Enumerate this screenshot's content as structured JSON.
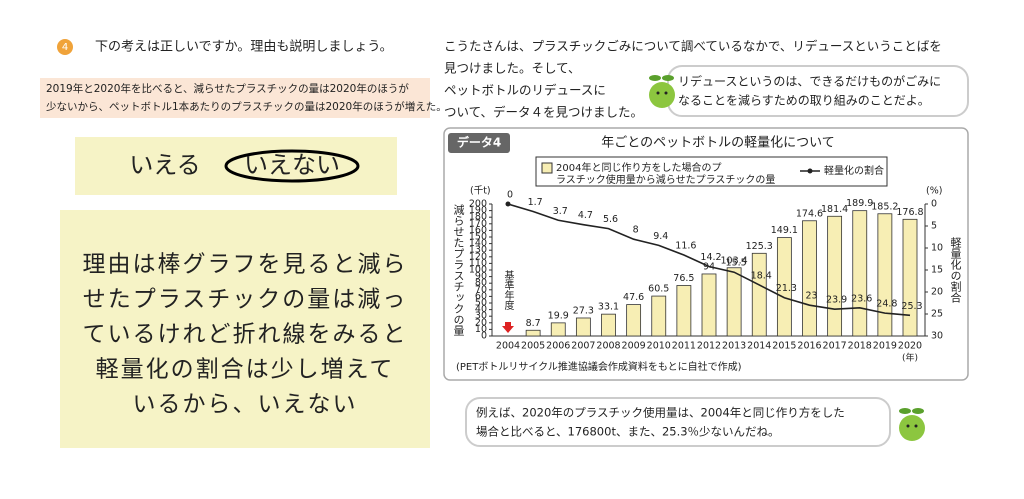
{
  "question": {
    "number": "4",
    "text": "下の考えは正しいですか。理由も説明しましょう。"
  },
  "statement": {
    "lines": [
      "2019年と2020年を比べると、減らせたプラスチックの量は2020年のほうが",
      "少ないから、ペットボトル1本あたりのプラスチックの量は2020年のほうが増えた。"
    ]
  },
  "answer": {
    "options": [
      "いえる",
      "いえない"
    ]
  },
  "reason": {
    "lines": [
      "理由は棒グラフを見ると減ら",
      "せたプラスチックの量は減っ",
      "ているけれど折れ線をみると",
      "軽量化の割合は少し増えて",
      "いるから、いえない"
    ]
  },
  "intro": {
    "lines": [
      "こうたさんは、プラスチックごみについて調べているなかで、リデュースということばを",
      "見つけました。そして、",
      "ペットボトルのリデュースに",
      "ついて、データ４を見つけました。"
    ]
  },
  "bubble": {
    "lines": [
      "リデュースというのは、できるだけものがごみに",
      "なることを減らすための取り組みのことだよ。"
    ]
  },
  "chart": {
    "type": "bar-line",
    "tag": "データ4",
    "title": "年ごとのペットボトルの軽量化について",
    "categories": [
      "2004",
      "2005",
      "2006",
      "2007",
      "2008",
      "2009",
      "2010",
      "2011",
      "2012",
      "2013",
      "2014",
      "2015",
      "2016",
      "2017",
      "2018",
      "2019",
      "2020"
    ],
    "series": [
      {
        "name": "2004年と同じ作り方をした場合のプラスチック使用量から減らせたプラスチックの量",
        "type": "bar",
        "color": "#f7eeb4",
        "values": [
          null,
          8.7,
          19.9,
          27.3,
          33.1,
          47.6,
          60.5,
          76.5,
          94,
          103.4,
          125.3,
          149.1,
          174.6,
          181.4,
          189.9,
          185.2,
          176.8
        ]
      },
      {
        "name": "軽量化の割合",
        "type": "line",
        "axis": "y2",
        "color": "#222222",
        "values": [
          0,
          1.7,
          3.7,
          4.7,
          5.6,
          8,
          9.4,
          11.6,
          14.2,
          15.5,
          18.4,
          21.3,
          23,
          23.9,
          23.6,
          24.8,
          25.3
        ]
      }
    ],
    "ylim": [
      0,
      200
    ],
    "yticks": [
      0,
      10,
      20,
      30,
      40,
      50,
      60,
      70,
      80,
      90,
      100,
      110,
      120,
      130,
      140,
      150,
      160,
      170,
      180,
      190,
      200
    ],
    "y2lim": [
      0,
      30
    ],
    "y2ticks": [
      0,
      5,
      10,
      15,
      20,
      25,
      30
    ],
    "y2_reversed": true,
    "y_unit": "(千t)",
    "y2_unit": "(%)",
    "x_unit": "(年)",
    "ylabel": "減らせたプラスチックの量",
    "y2label": "軽量化の割合",
    "annotation": "基準年度",
    "source": "(PETボトルリサイクル推進協議会作成資料をもとに自社で作成)"
  },
  "footer_bubble": {
    "lines": [
      "例えば、2020年のプラスチック使用量は、2004年と同じ作り方をした",
      "場合と比べると、176800t、また、25.3％少ないんだね。"
    ]
  }
}
